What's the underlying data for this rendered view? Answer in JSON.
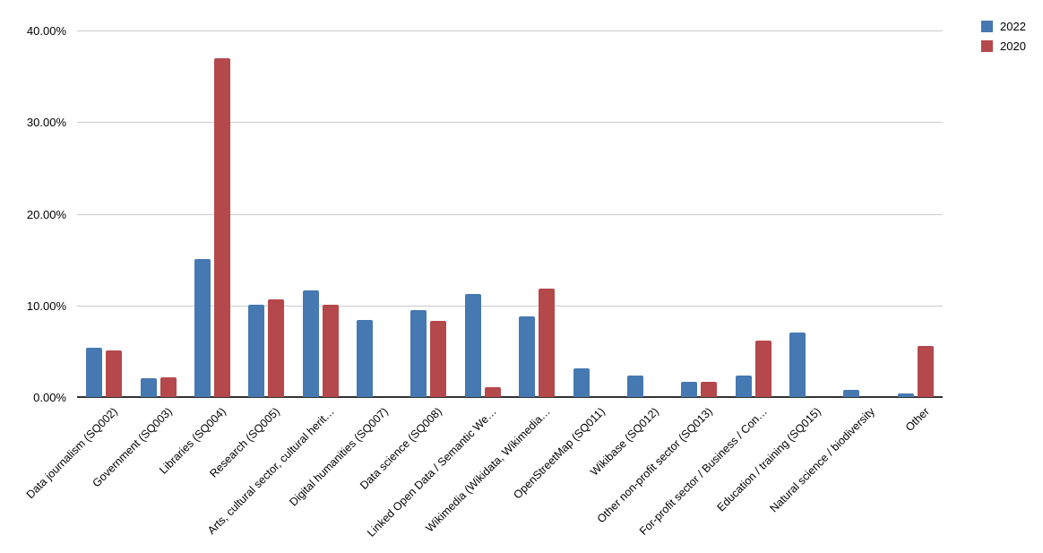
{
  "chart_data": {
    "type": "bar",
    "title": "",
    "xlabel": "",
    "ylabel": "",
    "grid": true,
    "legend_position": "top-right",
    "ylim": [
      0,
      40
    ],
    "y_ticks": [
      {
        "value": 0,
        "label": "0.00%"
      },
      {
        "value": 10,
        "label": "10.00%"
      },
      {
        "value": 20,
        "label": "20.00%"
      },
      {
        "value": 30,
        "label": "30.00%"
      },
      {
        "value": 40,
        "label": "40.00%"
      }
    ],
    "categories": [
      "Data journalism (SQ002)",
      "Government (SQ003)",
      "Libraries (SQ004)",
      "Research (SQ005)",
      "Arts, cultural sector, cultural herit…",
      "Digital humanities (SQ007)",
      "Data science (SQ008)",
      "Linked Open Data / Semantic We…",
      "Wikimedia (Wikidata, Wikimedia…",
      "OpenStreetMap (SQ011)",
      "Wikibase (SQ012)",
      "Other non-profit sector (SQ013)",
      "For-profit sector / Business / Con…",
      "Education / training (SQ015)",
      "Natural science / biodiversity",
      "Other"
    ],
    "series": [
      {
        "name": "2022",
        "color": "#4678b2",
        "values": [
          5.4,
          2.1,
          15.1,
          10.1,
          11.6,
          8.4,
          9.5,
          11.2,
          8.8,
          3.1,
          2.3,
          1.7,
          2.3,
          7.0,
          0.8,
          0.4
        ]
      },
      {
        "name": "2020",
        "color": "#b4484b",
        "values": [
          5.1,
          2.2,
          37.0,
          10.7,
          10.1,
          0,
          8.3,
          1.1,
          11.8,
          0,
          0,
          1.7,
          6.2,
          0,
          0,
          5.6
        ]
      }
    ]
  },
  "colors": {
    "background": "#ffffff",
    "gridline": "#cccccc",
    "axis_line": "#333333",
    "text": "#000000"
  }
}
